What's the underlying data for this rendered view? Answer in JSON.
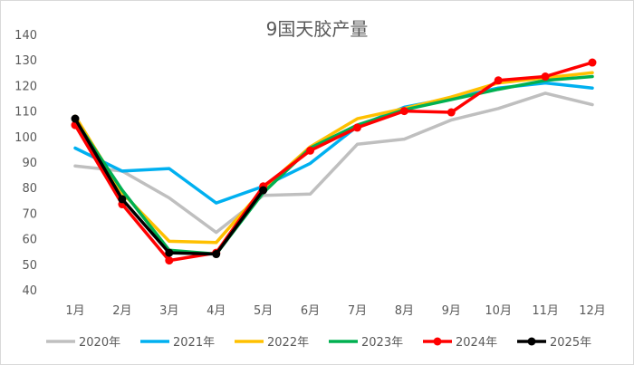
{
  "chart_data": {
    "type": "line",
    "title": "9国天胶产量",
    "xlabel": "",
    "ylabel": "",
    "ylim": [
      40,
      140
    ],
    "yticks": [
      40,
      50,
      60,
      70,
      80,
      90,
      100,
      110,
      120,
      130,
      140
    ],
    "grid": false,
    "legend_position": "bottom",
    "categories": [
      "1月",
      "2月",
      "3月",
      "4月",
      "5月",
      "6月",
      "7月",
      "8月",
      "9月",
      "10月",
      "11月",
      "12月"
    ],
    "series": [
      {
        "name": "2020年",
        "color": "#bfbfbf",
        "marker": false,
        "values": [
          88.5,
          86.5,
          76,
          62.5,
          77,
          77.5,
          97,
          99,
          106.5,
          111,
          117,
          112.5
        ]
      },
      {
        "name": "2021年",
        "color": "#00b0f0",
        "marker": false,
        "values": [
          95.5,
          86.5,
          87.5,
          74,
          80.5,
          89.5,
          104,
          111.5,
          115,
          119,
          121,
          119
        ]
      },
      {
        "name": "2022年",
        "color": "#ffc000",
        "marker": false,
        "values": [
          108,
          78,
          59,
          58.5,
          79.5,
          96,
          107,
          111,
          115.5,
          121,
          123,
          125
        ]
      },
      {
        "name": "2023年",
        "color": "#00b050",
        "marker": false,
        "values": [
          106.5,
          79,
          55.5,
          54,
          78,
          95.5,
          104.5,
          110.5,
          114.5,
          118.5,
          122,
          123.5
        ]
      },
      {
        "name": "2024年",
        "color": "#ff0000",
        "marker": true,
        "values": [
          104.5,
          73.5,
          51.5,
          54.5,
          80.5,
          94.5,
          103.5,
          110,
          109.5,
          122,
          123.5,
          129
        ]
      },
      {
        "name": "2025年",
        "color": "#000000",
        "marker": true,
        "values": [
          107,
          75.5,
          54.5,
          54,
          79,
          null,
          null,
          null,
          null,
          null,
          null,
          null
        ]
      }
    ]
  }
}
